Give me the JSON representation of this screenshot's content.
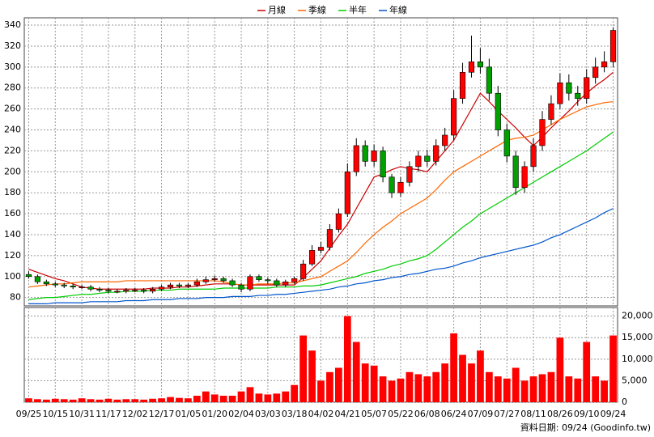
{
  "chart_data": [
    {
      "type": "candlestick",
      "legend": "top",
      "grid": true,
      "up_color": "#ff0000",
      "down_color": "#00a000",
      "categories": [
        "09/25",
        null,
        null,
        "10/15",
        null,
        null,
        "10/31",
        null,
        null,
        "11/17",
        null,
        null,
        "12/02",
        null,
        null,
        "12/17",
        null,
        null,
        "01/05",
        null,
        null,
        "01/20",
        null,
        null,
        "02/04",
        null,
        null,
        "03/03",
        null,
        null,
        "03/18",
        null,
        null,
        "04/02",
        null,
        null,
        "04/21",
        null,
        null,
        "05/07",
        null,
        null,
        "05/22",
        null,
        null,
        "06/08",
        null,
        null,
        "06/24",
        null,
        null,
        "07/09",
        null,
        null,
        "07/27",
        null,
        null,
        "08/11",
        null,
        null,
        "08/26",
        null,
        null,
        "09/10",
        null,
        null,
        "09/24"
      ],
      "open": [
        102,
        100,
        95,
        93,
        92,
        91,
        90,
        90,
        88,
        87,
        86,
        86,
        87,
        87,
        86,
        88,
        90,
        92,
        91,
        92,
        95,
        97,
        98,
        96,
        92,
        88,
        100,
        97,
        96,
        92,
        95,
        98,
        112,
        125,
        128,
        145,
        160,
        200,
        225,
        210,
        220,
        195,
        180,
        190,
        205,
        215,
        210,
        225,
        235,
        270,
        295,
        305,
        300,
        275,
        240,
        215,
        185,
        205,
        225,
        250,
        265,
        285,
        275,
        270,
        290,
        300,
        305
      ],
      "high": [
        105,
        102,
        97,
        95,
        94,
        93,
        92,
        92,
        90,
        89,
        88,
        89,
        89,
        89,
        90,
        92,
        94,
        94,
        94,
        98,
        100,
        101,
        100,
        98,
        94,
        102,
        102,
        99,
        98,
        97,
        100,
        116,
        130,
        133,
        150,
        165,
        208,
        232,
        230,
        226,
        224,
        198,
        195,
        210,
        220,
        221,
        231,
        242,
        278,
        304,
        330,
        318,
        308,
        282,
        246,
        220,
        210,
        232,
        258,
        273,
        294,
        293,
        282,
        298,
        309,
        315,
        338
      ],
      "low": [
        98,
        93,
        91,
        90,
        89,
        88,
        88,
        86,
        85,
        84,
        84,
        84,
        85,
        84,
        84,
        86,
        88,
        89,
        89,
        90,
        93,
        95,
        94,
        90,
        85,
        86,
        95,
        93,
        90,
        90,
        93,
        96,
        110,
        122,
        125,
        142,
        157,
        196,
        205,
        205,
        190,
        175,
        176,
        186,
        200,
        205,
        206,
        220,
        230,
        265,
        290,
        294,
        268,
        234,
        209,
        178,
        180,
        200,
        220,
        245,
        260,
        268,
        263,
        265,
        284,
        295,
        300
      ],
      "close": [
        100,
        95,
        93,
        92,
        91,
        90,
        90,
        88,
        87,
        86,
        86,
        87,
        87,
        86,
        88,
        90,
        92,
        91,
        92,
        95,
        97,
        98,
        96,
        92,
        88,
        100,
        97,
        96,
        92,
        95,
        98,
        112,
        125,
        128,
        145,
        160,
        200,
        225,
        210,
        220,
        195,
        180,
        190,
        205,
        215,
        210,
        225,
        235,
        270,
        295,
        305,
        300,
        275,
        240,
        215,
        185,
        205,
        225,
        250,
        265,
        285,
        275,
        270,
        290,
        300,
        305,
        335
      ],
      "series": [
        {
          "name": "月線",
          "color": "#cc0000",
          "values": [
            107,
            104,
            101,
            98,
            96,
            93,
            90,
            89,
            88,
            88,
            88,
            88,
            88,
            88,
            89,
            89,
            89,
            90,
            90,
            91,
            92,
            93,
            93,
            93,
            92,
            92,
            92,
            92,
            92,
            92,
            92,
            99,
            107,
            115,
            127,
            139,
            150,
            165,
            180,
            195,
            198,
            202,
            205,
            203,
            202,
            200,
            210,
            220,
            230,
            245,
            260,
            275,
            267,
            258,
            250,
            242,
            233,
            225,
            233,
            242,
            250,
            258,
            267,
            275,
            282,
            288,
            295
          ]
        },
        {
          "name": "季線",
          "color": "#ff6600",
          "values": [
            90,
            91,
            92,
            93,
            93,
            94,
            95,
            95,
            95,
            95,
            95,
            96,
            96,
            96,
            96,
            96,
            96,
            96,
            96,
            96,
            96,
            96,
            95,
            93,
            92,
            92,
            93,
            93,
            93,
            94,
            94,
            96,
            98,
            100,
            105,
            110,
            115,
            123,
            132,
            140,
            147,
            153,
            160,
            165,
            170,
            175,
            183,
            192,
            200,
            205,
            210,
            215,
            220,
            225,
            230,
            232,
            233,
            235,
            240,
            245,
            250,
            254,
            258,
            262,
            264,
            266,
            267
          ]
        },
        {
          "name": "半年",
          "color": "#00cc00",
          "values": [
            78,
            79,
            80,
            80,
            81,
            82,
            83,
            83,
            84,
            85,
            85,
            86,
            86,
            86,
            87,
            87,
            87,
            88,
            88,
            88,
            88,
            88,
            89,
            89,
            89,
            89,
            89,
            89,
            90,
            90,
            90,
            91,
            91,
            92,
            94,
            96,
            98,
            100,
            103,
            105,
            107,
            110,
            112,
            115,
            117,
            120,
            126,
            133,
            140,
            147,
            153,
            160,
            165,
            170,
            175,
            180,
            185,
            190,
            195,
            200,
            205,
            210,
            215,
            220,
            226,
            232,
            238
          ]
        },
        {
          "name": "年線",
          "color": "#0055cc",
          "values": [
            74,
            74,
            74,
            75,
            75,
            75,
            75,
            76,
            76,
            76,
            76,
            77,
            77,
            77,
            78,
            78,
            78,
            79,
            79,
            79,
            80,
            80,
            80,
            81,
            81,
            81,
            82,
            82,
            83,
            83,
            84,
            85,
            86,
            87,
            88,
            90,
            91,
            93,
            94,
            96,
            97,
            99,
            100,
            102,
            103,
            105,
            107,
            108,
            110,
            113,
            115,
            118,
            120,
            122,
            124,
            126,
            128,
            130,
            133,
            137,
            140,
            144,
            148,
            152,
            156,
            161,
            165
          ]
        }
      ],
      "ylim": [
        72,
        347
      ],
      "yticks": [
        80,
        100,
        120,
        140,
        160,
        180,
        200,
        220,
        240,
        260,
        280,
        300,
        320,
        340
      ]
    },
    {
      "type": "bar",
      "color": "#ff0000",
      "grid": true,
      "values": [
        900,
        700,
        600,
        800,
        700,
        600,
        900,
        700,
        600,
        800,
        600,
        700,
        700,
        600,
        800,
        900,
        1200,
        1000,
        900,
        1500,
        2500,
        1800,
        1500,
        1500,
        2500,
        3500,
        2000,
        1800,
        2000,
        2500,
        4000,
        15500,
        12000,
        5000,
        7000,
        8000,
        20000,
        14000,
        9000,
        8500,
        6000,
        5000,
        5500,
        7000,
        6500,
        6000,
        7000,
        9000,
        16000,
        11000,
        9000,
        12000,
        7000,
        6000,
        5500,
        8000,
        5000,
        6000,
        6500,
        7000,
        15000,
        6000,
        5500,
        14000,
        6000,
        5000,
        15500
      ],
      "ylim": [
        0,
        22000
      ],
      "yticks": [
        0,
        {
          "value": 5000,
          "label": "5,000"
        },
        {
          "value": 10000,
          "label": "10,000"
        },
        {
          "value": 15000,
          "label": "15,000"
        },
        {
          "value": 20000,
          "label": "20,000"
        }
      ]
    }
  ],
  "footer": "資料日期: 09/24 (Goodinfo.tw)"
}
